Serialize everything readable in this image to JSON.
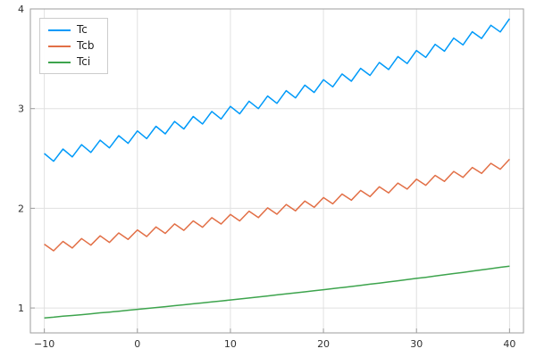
{
  "chart_data": {
    "type": "line",
    "title": "",
    "xlabel": "",
    "ylabel": "",
    "xlim": [
      -11.5,
      41.5
    ],
    "ylim": [
      0.75,
      4.0
    ],
    "xticks": [
      -10,
      0,
      10,
      20,
      30,
      40
    ],
    "yticks": [
      1,
      2,
      3,
      4
    ],
    "grid": true,
    "legend_position": "top-left",
    "x": [
      -10,
      -9,
      -8,
      -7,
      -6,
      -5,
      -4,
      -3,
      -2,
      -1,
      0,
      1,
      2,
      3,
      4,
      5,
      6,
      7,
      8,
      9,
      10,
      11,
      12,
      13,
      14,
      15,
      16,
      17,
      18,
      19,
      20,
      21,
      22,
      23,
      24,
      25,
      26,
      27,
      28,
      29,
      30,
      31,
      32,
      33,
      34,
      35,
      36,
      37,
      38,
      39,
      40
    ],
    "series": [
      {
        "name": "Tc",
        "color": "#009af9",
        "values": [
          2.55,
          2.472,
          2.594,
          2.516,
          2.638,
          2.56,
          2.683,
          2.606,
          2.729,
          2.652,
          2.776,
          2.699,
          2.823,
          2.747,
          2.871,
          2.796,
          2.921,
          2.846,
          2.971,
          2.896,
          3.022,
          2.948,
          3.074,
          3.0,
          3.126,
          3.053,
          3.18,
          3.107,
          3.235,
          3.162,
          3.29,
          3.218,
          3.347,
          3.275,
          3.404,
          3.333,
          3.463,
          3.392,
          3.522,
          3.452,
          3.583,
          3.514,
          3.645,
          3.576,
          3.707,
          3.639,
          3.771,
          3.704,
          3.836,
          3.769,
          3.902
        ]
      },
      {
        "name": "Tcb",
        "color": "#e26f46",
        "values": [
          1.64,
          1.574,
          1.668,
          1.601,
          1.696,
          1.63,
          1.724,
          1.658,
          1.753,
          1.688,
          1.783,
          1.717,
          1.813,
          1.748,
          1.843,
          1.779,
          1.874,
          1.81,
          1.906,
          1.842,
          1.938,
          1.874,
          1.971,
          1.907,
          2.004,
          1.941,
          2.038,
          1.975,
          2.072,
          2.01,
          2.107,
          2.045,
          2.143,
          2.081,
          2.179,
          2.117,
          2.216,
          2.155,
          2.253,
          2.192,
          2.292,
          2.231,
          2.33,
          2.27,
          2.37,
          2.31,
          2.41,
          2.35,
          2.451,
          2.392,
          2.492
        ]
      },
      {
        "name": "Tci",
        "color": "#3da44d",
        "values": [
          0.9,
          0.908,
          0.917,
          0.925,
          0.933,
          0.942,
          0.951,
          0.959,
          0.968,
          0.977,
          0.986,
          0.995,
          1.004,
          1.013,
          1.023,
          1.032,
          1.042,
          1.051,
          1.061,
          1.07,
          1.08,
          1.09,
          1.1,
          1.11,
          1.121,
          1.131,
          1.141,
          1.152,
          1.162,
          1.173,
          1.183,
          1.194,
          1.205,
          1.216,
          1.227,
          1.239,
          1.25,
          1.261,
          1.273,
          1.285,
          1.297,
          1.308,
          1.32,
          1.333,
          1.345,
          1.357,
          1.37,
          1.382,
          1.395,
          1.408,
          1.42
        ]
      }
    ],
    "style": {
      "grid_color": "#e0e0e0",
      "frame_color": "#9e9e9e",
      "tick_color": "#303030",
      "background": "#ffffff"
    }
  }
}
